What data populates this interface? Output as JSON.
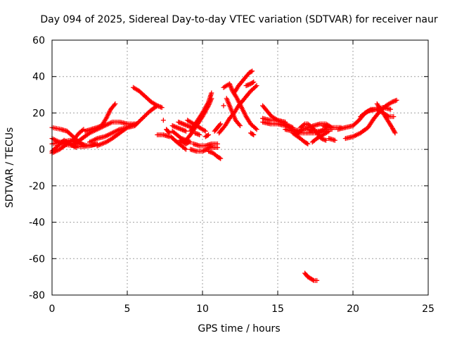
{
  "chart_data": {
    "type": "scatter",
    "title": "Day 094 of 2025, Sidereal Day-to-day VTEC variation (SDTVAR) for receiver naur",
    "xlabel": "GPS time / hours",
    "ylabel": "SDTVAR / TECUs",
    "xlim": [
      0,
      25
    ],
    "ylim": [
      -80,
      60
    ],
    "xticks": [
      0,
      5,
      10,
      15,
      20,
      25
    ],
    "yticks": [
      -80,
      -60,
      -40,
      -20,
      0,
      20,
      40,
      60
    ],
    "grid": true,
    "marker": "+",
    "series": [
      {
        "name": "SDTVAR",
        "color": "#ff0000",
        "tracks": [
          [
            [
              0.0,
              12
            ],
            [
              0.6,
              11
            ],
            [
              1.0,
              10
            ],
            [
              1.4,
              7
            ],
            [
              1.8,
              4
            ],
            [
              2.2,
              2
            ]
          ],
          [
            [
              0.0,
              -2
            ],
            [
              0.5,
              0
            ],
            [
              1.0,
              3
            ],
            [
              1.5,
              6
            ],
            [
              1.8,
              9
            ],
            [
              2.1,
              11
            ]
          ],
          [
            [
              0.0,
              6
            ],
            [
              0.5,
              4
            ],
            [
              1.0,
              2.5
            ],
            [
              1.5,
              2
            ],
            [
              2.0,
              1.5
            ],
            [
              2.5,
              2
            ],
            [
              3.0,
              3
            ]
          ],
          [
            [
              0.0,
              3
            ],
            [
              0.6,
              4
            ],
            [
              1.2,
              5
            ],
            [
              1.8,
              3
            ],
            [
              2.4,
              2
            ],
            [
              3.0,
              3
            ]
          ],
          [
            [
              0.0,
              -1
            ],
            [
              0.4,
              2
            ],
            [
              0.8,
              5
            ],
            [
              1.2,
              3
            ],
            [
              1.6,
              1
            ]
          ],
          [
            [
              1.5,
              3
            ],
            [
              2.0,
              6
            ],
            [
              2.5,
              9
            ],
            [
              3.0,
              11
            ],
            [
              3.5,
              13
            ],
            [
              4.0,
              15
            ],
            [
              4.5,
              15
            ],
            [
              5.0,
              14
            ],
            [
              5.6,
              14
            ]
          ],
          [
            [
              2.2,
              10
            ],
            [
              2.6,
              11
            ],
            [
              3.0,
              12
            ],
            [
              3.3,
              13
            ],
            [
              3.6,
              17
            ],
            [
              3.9,
              22
            ],
            [
              4.2,
              25
            ]
          ],
          [
            [
              2.5,
              4
            ],
            [
              3.0,
              6
            ],
            [
              3.5,
              7
            ],
            [
              4.0,
              9
            ],
            [
              4.5,
              11
            ],
            [
              5.0,
              12
            ],
            [
              5.5,
              13
            ]
          ],
          [
            [
              3.0,
              2
            ],
            [
              3.6,
              4
            ],
            [
              4.0,
              6
            ],
            [
              4.5,
              9
            ],
            [
              5.0,
              12
            ],
            [
              5.5,
              14
            ]
          ],
          [
            [
              5.4,
              34
            ],
            [
              5.8,
              32
            ],
            [
              6.2,
              29
            ],
            [
              6.6,
              26
            ],
            [
              7.0,
              24
            ],
            [
              7.3,
              23
            ]
          ],
          [
            [
              5.5,
              13
            ],
            [
              6.0,
              17
            ],
            [
              6.5,
              21
            ],
            [
              7.0,
              24
            ]
          ],
          [
            [
              7.0,
              8
            ],
            [
              7.4,
              8
            ],
            [
              7.8,
              7
            ]
          ],
          [
            [
              7.4,
              16
            ]
          ],
          [
            [
              7.6,
              11
            ],
            [
              7.8,
              9
            ]
          ],
          [
            [
              7.9,
              7
            ],
            [
              8.3,
              4
            ],
            [
              8.6,
              2
            ],
            [
              8.9,
              0
            ]
          ],
          [
            [
              8.0,
              10
            ],
            [
              8.3,
              8
            ],
            [
              8.6,
              6
            ],
            [
              8.9,
              5
            ],
            [
              9.2,
              4
            ]
          ],
          [
            [
              8.0,
              13
            ],
            [
              8.3,
              12
            ],
            [
              8.6,
              11
            ],
            [
              8.9,
              10
            ]
          ],
          [
            [
              8.4,
              15
            ],
            [
              8.7,
              14
            ],
            [
              9.0,
              13
            ],
            [
              9.3,
              12
            ]
          ],
          [
            [
              8.5,
              5
            ],
            [
              8.7,
              4
            ],
            [
              8.9,
              3
            ],
            [
              9.1,
              4
            ]
          ],
          [
            [
              8.8,
              4
            ],
            [
              9.2,
              8
            ],
            [
              9.6,
              13
            ],
            [
              10.0,
              18
            ],
            [
              10.4,
              24
            ],
            [
              10.6,
              28
            ]
          ],
          [
            [
              9.2,
              10
            ],
            [
              9.6,
              15
            ],
            [
              10.0,
              20
            ],
            [
              10.4,
              26
            ],
            [
              10.6,
              31
            ]
          ],
          [
            [
              9.0,
              16
            ],
            [
              9.4,
              14
            ],
            [
              9.8,
              12
            ],
            [
              10.2,
              10
            ]
          ],
          [
            [
              9.5,
              9
            ],
            [
              9.8,
              8
            ]
          ],
          [
            [
              9.2,
              0
            ],
            [
              9.6,
              -1
            ],
            [
              10.0,
              -1
            ],
            [
              10.3,
              0
            ],
            [
              10.6,
              2
            ]
          ],
          [
            [
              9.4,
              3
            ],
            [
              9.8,
              2
            ],
            [
              10.2,
              2
            ],
            [
              10.6,
              3
            ],
            [
              11.0,
              3
            ]
          ],
          [
            [
              10.2,
              7
            ],
            [
              10.4,
              8
            ]
          ],
          [
            [
              10.4,
              -1
            ],
            [
              10.7,
              -2
            ],
            [
              11.0,
              -4
            ],
            [
              11.2,
              -5
            ]
          ],
          [
            [
              10.6,
              1
            ],
            [
              11.0,
              1
            ]
          ],
          [
            [
              10.8,
              10
            ],
            [
              11.0,
              12
            ],
            [
              11.2,
              14
            ]
          ],
          [
            [
              11.1,
              9
            ],
            [
              11.5,
              13
            ],
            [
              11.8,
              17
            ],
            [
              12.1,
              20
            ],
            [
              12.4,
              24
            ],
            [
              12.8,
              28
            ],
            [
              13.2,
              32
            ],
            [
              13.6,
              35
            ]
          ],
          [
            [
              11.4,
              24
            ]
          ],
          [
            [
              11.4,
              34
            ],
            [
              11.8,
              36
            ],
            [
              12.0,
              32
            ],
            [
              12.3,
              28
            ],
            [
              12.6,
              23
            ],
            [
              12.9,
              18
            ],
            [
              13.2,
              14
            ],
            [
              13.6,
              11
            ]
          ],
          [
            [
              11.6,
              28
            ],
            [
              11.9,
              22
            ],
            [
              12.2,
              16
            ],
            [
              12.5,
              13
            ]
          ],
          [
            [
              12.1,
              31
            ],
            [
              12.4,
              35
            ],
            [
              12.8,
              39
            ],
            [
              13.1,
              42
            ],
            [
              13.3,
              43
            ]
          ],
          [
            [
              12.9,
              35
            ],
            [
              13.2,
              36
            ],
            [
              13.4,
              37
            ]
          ],
          [
            [
              13.2,
              9
            ],
            [
              13.4,
              8
            ]
          ],
          [
            [
              14.0,
              24
            ],
            [
              14.3,
              21
            ],
            [
              14.6,
              18
            ],
            [
              15.0,
              16
            ],
            [
              15.5,
              14
            ],
            [
              16.0,
              12
            ]
          ],
          [
            [
              14.0,
              15
            ],
            [
              14.5,
              14
            ],
            [
              15.0,
              14
            ],
            [
              15.5,
              13
            ],
            [
              16.0,
              11
            ],
            [
              16.5,
              10
            ]
          ],
          [
            [
              14.0,
              17
            ],
            [
              14.5,
              16
            ],
            [
              15.0,
              16
            ],
            [
              15.5,
              15
            ]
          ],
          [
            [
              15.5,
              11
            ],
            [
              16.0,
              10
            ],
            [
              16.5,
              9
            ],
            [
              17.0,
              9
            ],
            [
              17.5,
              9
            ],
            [
              18.0,
              10
            ]
          ],
          [
            [
              16.0,
              9
            ],
            [
              16.5,
              6
            ],
            [
              16.8,
              4
            ],
            [
              17.0,
              3
            ]
          ],
          [
            [
              16.3,
              9
            ],
            [
              16.7,
              11
            ],
            [
              17.0,
              12
            ],
            [
              17.4,
              13
            ],
            [
              17.8,
              14
            ],
            [
              18.2,
              14
            ],
            [
              18.6,
              12
            ]
          ],
          [
            [
              16.5,
              12
            ],
            [
              16.8,
              14
            ],
            [
              17.0,
              14
            ],
            [
              17.3,
              12
            ],
            [
              17.6,
              9
            ],
            [
              17.9,
              6
            ],
            [
              18.2,
              5
            ]
          ],
          [
            [
              16.8,
              -68
            ],
            [
              17.0,
              -70
            ],
            [
              17.2,
              -71
            ],
            [
              17.4,
              -72
            ],
            [
              17.6,
              -72
            ]
          ],
          [
            [
              17.0,
              11
            ],
            [
              17.4,
              10
            ],
            [
              17.8,
              10
            ],
            [
              18.2,
              11
            ],
            [
              18.6,
              11
            ]
          ],
          [
            [
              17.3,
              4
            ],
            [
              17.6,
              6
            ],
            [
              18.0,
              8
            ],
            [
              18.4,
              10
            ]
          ],
          [
            [
              18.4,
              6
            ],
            [
              18.8,
              5
            ]
          ],
          [
            [
              18.0,
              13
            ],
            [
              18.4,
              12
            ],
            [
              18.8,
              12
            ],
            [
              19.2,
              12
            ]
          ],
          [
            [
              19.0,
              11
            ],
            [
              19.5,
              12
            ],
            [
              20.0,
              13
            ],
            [
              20.4,
              16
            ],
            [
              20.8,
              20
            ],
            [
              21.2,
              22
            ],
            [
              21.6,
              22
            ],
            [
              22.0,
              20
            ],
            [
              22.4,
              18
            ],
            [
              22.7,
              18
            ]
          ],
          [
            [
              19.5,
              6
            ],
            [
              20.0,
              7
            ],
            [
              20.5,
              9
            ],
            [
              21.0,
              12
            ],
            [
              21.4,
              17
            ],
            [
              21.8,
              21
            ],
            [
              22.2,
              24
            ],
            [
              22.6,
              26
            ],
            [
              22.9,
              27
            ]
          ],
          [
            [
              20.5,
              18
            ],
            [
              21.0,
              21
            ],
            [
              21.5,
              22
            ],
            [
              22.0,
              23
            ],
            [
              22.5,
              22
            ]
          ],
          [
            [
              21.6,
              25
            ],
            [
              22.0,
              20
            ],
            [
              22.3,
              16
            ],
            [
              22.6,
              12
            ],
            [
              22.8,
              9
            ]
          ]
        ]
      }
    ]
  }
}
